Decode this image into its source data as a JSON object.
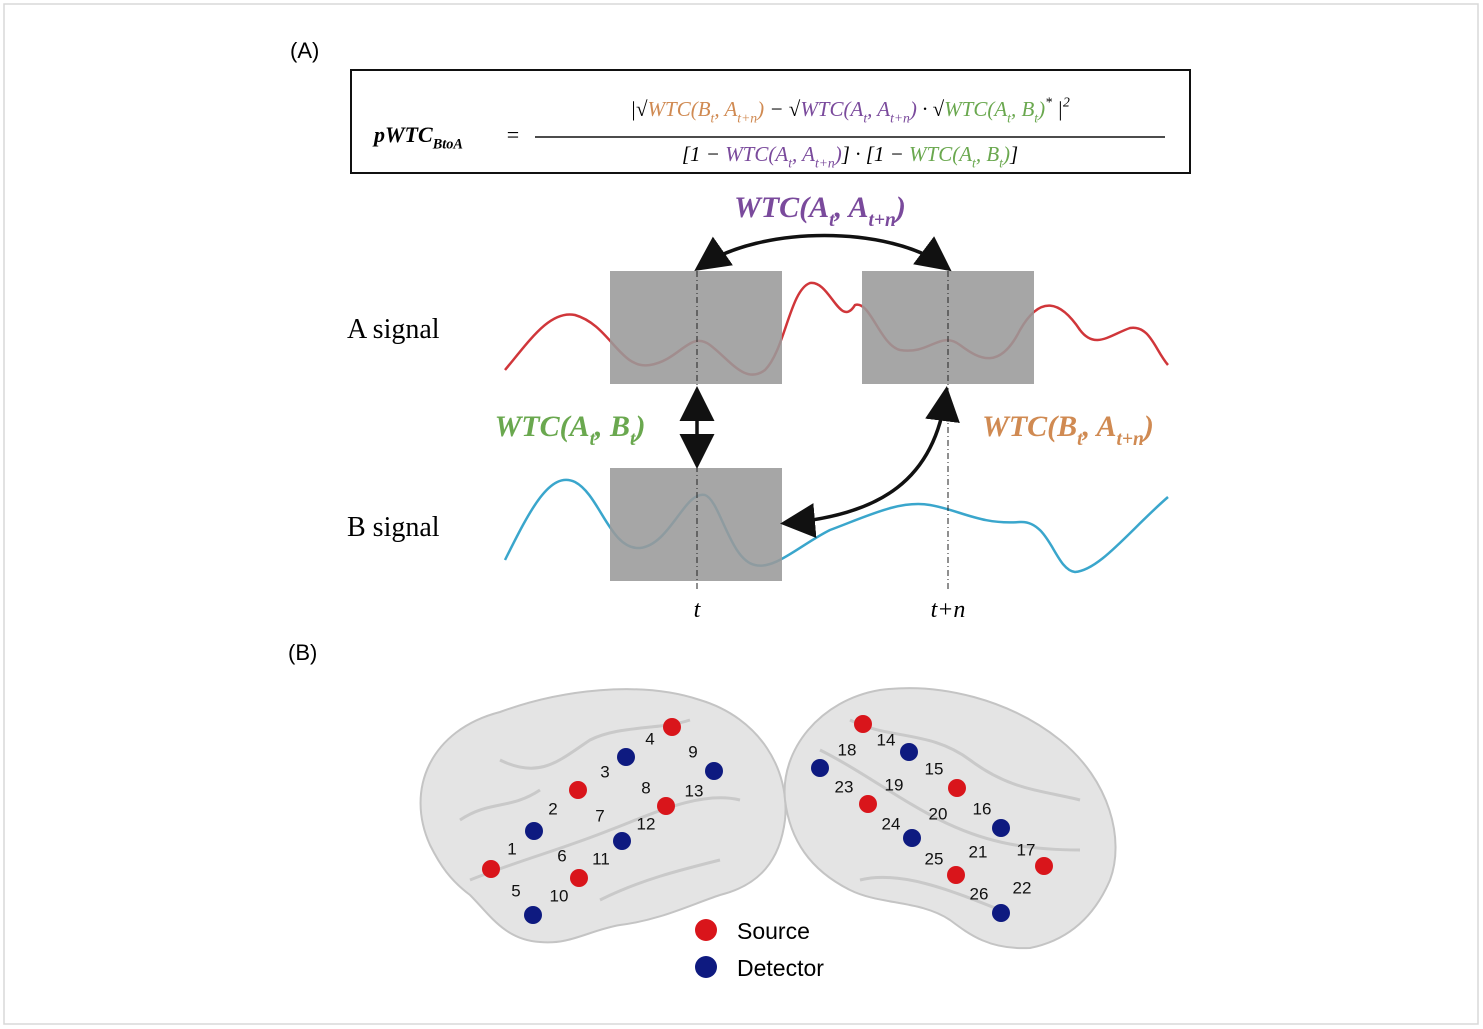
{
  "panel_a": {
    "label": "(A)",
    "formula": {
      "lhs": [
        {
          "text": "pWTC"
        },
        {
          "sub": "BtoA"
        }
      ],
      "equals": "=",
      "numerator": [
        {
          "text": "|√"
        },
        {
          "text": "WTC(B",
          "color": "#d08a52"
        },
        {
          "sub": "t",
          "color": "#d08a52"
        },
        {
          "text": ", A",
          "color": "#d08a52"
        },
        {
          "sub": "t+n",
          "color": "#d08a52"
        },
        {
          "text": ")",
          "color": "#d08a52"
        },
        {
          "text": " − √"
        },
        {
          "text": "WTC(A",
          "color": "#7a4a9c"
        },
        {
          "sub": "t",
          "color": "#7a4a9c"
        },
        {
          "text": ", A",
          "color": "#7a4a9c"
        },
        {
          "sub": "t+n",
          "color": "#7a4a9c"
        },
        {
          "text": ")",
          "color": "#7a4a9c"
        },
        {
          "text": " · √"
        },
        {
          "text": "WTC(A",
          "color": "#6aa84f"
        },
        {
          "sub": "t",
          "color": "#6aa84f"
        },
        {
          "text": ", B",
          "color": "#6aa84f"
        },
        {
          "sub": "t",
          "color": "#6aa84f"
        },
        {
          "text": ")",
          "color": "#6aa84f"
        },
        {
          "sup": "*"
        },
        {
          "text": " |"
        },
        {
          "sup": "2"
        }
      ],
      "denominator": [
        {
          "text": "[1 − "
        },
        {
          "text": "WTC(A",
          "color": "#7a4a9c"
        },
        {
          "sub": "t",
          "color": "#7a4a9c"
        },
        {
          "text": ", A",
          "color": "#7a4a9c"
        },
        {
          "sub": "t+n",
          "color": "#7a4a9c"
        },
        {
          "text": ")",
          "color": "#7a4a9c"
        },
        {
          "text": "] · [1 − "
        },
        {
          "text": "WTC(A",
          "color": "#6aa84f"
        },
        {
          "sub": "t",
          "color": "#6aa84f"
        },
        {
          "text": ", B",
          "color": "#6aa84f"
        },
        {
          "sub": "t",
          "color": "#6aa84f"
        },
        {
          "text": ")",
          "color": "#6aa84f"
        },
        {
          "text": "]"
        }
      ]
    },
    "arc_label": [
      {
        "text": "WTC(A",
        "color": "#7a4a9c"
      },
      {
        "sub": "t",
        "color": "#7a4a9c"
      },
      {
        "text": ", A",
        "color": "#7a4a9c"
      },
      {
        "sub": "t+n",
        "color": "#7a4a9c"
      },
      {
        "text": ")",
        "color": "#7a4a9c"
      }
    ],
    "a_signal": "A signal",
    "b_signal": "B signal",
    "sync_label": [
      {
        "text": "WTC(A",
        "color": "#6aa84f"
      },
      {
        "sub": "t",
        "color": "#6aa84f"
      },
      {
        "text": ", B",
        "color": "#6aa84f"
      },
      {
        "sub": "t",
        "color": "#6aa84f"
      },
      {
        "text": ")",
        "color": "#6aa84f"
      }
    ],
    "lag_label": [
      {
        "text": "WTC(B",
        "color": "#d08a52"
      },
      {
        "sub": "t",
        "color": "#d08a52"
      },
      {
        "text": ", A",
        "color": "#d08a52"
      },
      {
        "sub": "t+n",
        "color": "#d08a52"
      },
      {
        "text": ")",
        "color": "#d08a52"
      }
    ],
    "time_t": "t",
    "time_t_plus_n": "t+n"
  },
  "panel_b": {
    "label": "(B)",
    "channels": [
      "1",
      "2",
      "3",
      "4",
      "5",
      "6",
      "7",
      "8",
      "9",
      "10",
      "11",
      "12",
      "13",
      "14",
      "15",
      "16",
      "17",
      "18",
      "19",
      "20",
      "21",
      "22",
      "23",
      "24",
      "25",
      "26"
    ],
    "legend": {
      "source": "Source",
      "detector": "Detector"
    }
  }
}
